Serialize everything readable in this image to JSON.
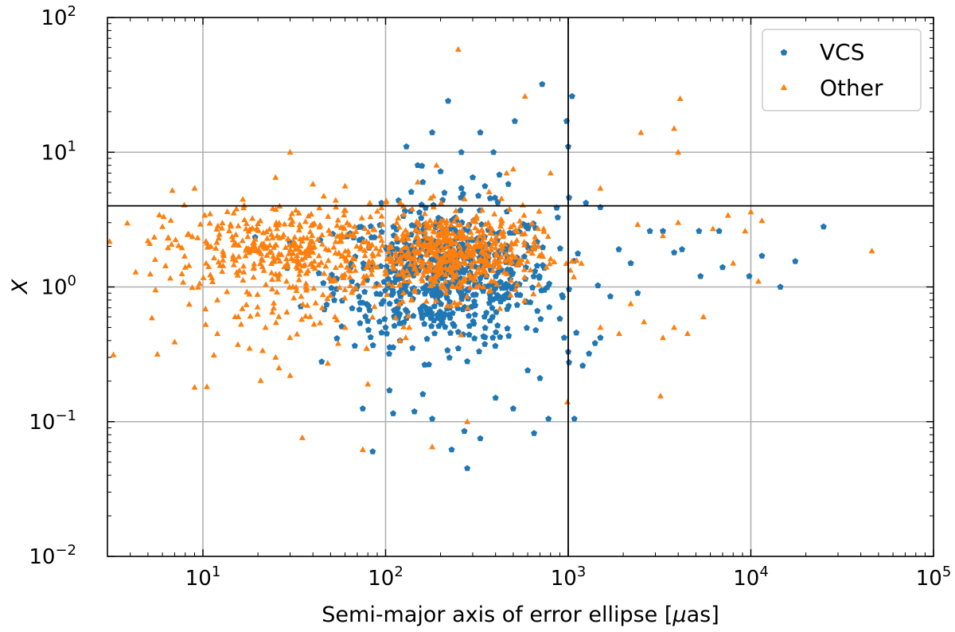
{
  "chart_data": {
    "type": "scatter",
    "title": "",
    "xlabel_main": "Semi-major axis of error ellipse [",
    "xlabel_mu": "μ",
    "xlabel_tail": "as]",
    "ylabel": "X",
    "xscale": "log",
    "yscale": "log",
    "xlim": [
      3,
      100000
    ],
    "ylim": [
      0.01,
      100
    ],
    "grid": true,
    "legend_position": "top-right",
    "x_ticks": [
      {
        "value": 10,
        "base": "10",
        "exp": "1"
      },
      {
        "value": 100,
        "base": "10",
        "exp": "2"
      },
      {
        "value": 1000,
        "base": "10",
        "exp": "3"
      },
      {
        "value": 10000,
        "base": "10",
        "exp": "4"
      },
      {
        "value": 100000,
        "base": "10",
        "exp": "5"
      }
    ],
    "y_ticks": [
      {
        "value": 0.01,
        "base": "10",
        "exp": "−2"
      },
      {
        "value": 0.1,
        "base": "10",
        "exp": "−1"
      },
      {
        "value": 1,
        "base": "10",
        "exp": "0"
      },
      {
        "value": 10,
        "base": "10",
        "exp": "1"
      },
      {
        "value": 100,
        "base": "10",
        "exp": "2"
      }
    ],
    "reference_lines": {
      "vertical_x": 1000,
      "horizontal_y": 4
    },
    "series": [
      {
        "name": "VCS",
        "color": "#1f77b4",
        "marker": "pentagon",
        "points": [
          [
            720,
            32
          ],
          [
            1050,
            26
          ],
          [
            220,
            24
          ],
          [
            510,
            17
          ],
          [
            980,
            17
          ],
          [
            180,
            14
          ],
          [
            330,
            14
          ],
          [
            130,
            11
          ],
          [
            1000,
            11
          ],
          [
            390,
            10
          ],
          [
            260,
            10
          ],
          [
            150,
            8
          ],
          [
            200,
            7.2
          ],
          [
            300,
            6.5
          ],
          [
            420,
            6.8
          ],
          [
            160,
            6.0
          ],
          [
            350,
            5.6
          ],
          [
            470,
            5.8
          ],
          [
            260,
            5.4
          ],
          [
            210,
            5.0
          ],
          [
            1010,
            4.6
          ],
          [
            1250,
            4.2
          ],
          [
            1500,
            3.9
          ],
          [
            2800,
            2.6
          ],
          [
            3300,
            2.6
          ],
          [
            4200,
            1.9
          ],
          [
            5200,
            2.6
          ],
          [
            6700,
            2.6
          ],
          [
            7000,
            1.4
          ],
          [
            11500,
            1.7
          ],
          [
            25000,
            2.8
          ],
          [
            17500,
            1.55
          ],
          [
            14500,
            1.0
          ],
          [
            5300,
            1.2
          ],
          [
            9800,
            1.2
          ],
          [
            3800,
            1.8
          ],
          [
            2200,
            1.5
          ],
          [
            1700,
            0.85
          ],
          [
            2400,
            0.9
          ],
          [
            1500,
            0.42
          ],
          [
            1300,
            0.32
          ],
          [
            1200,
            0.26
          ],
          [
            1000,
            0.33
          ],
          [
            950,
            0.42
          ],
          [
            900,
            0.58
          ],
          [
            780,
            0.105
          ],
          [
            1080,
            0.105
          ],
          [
            650,
            0.082
          ],
          [
            330,
            0.075
          ],
          [
            280,
            0.045
          ],
          [
            230,
            0.062
          ],
          [
            180,
            0.105
          ],
          [
            110,
            0.115
          ],
          [
            85,
            0.06
          ],
          [
            75,
            0.125
          ],
          [
            270,
            0.085
          ],
          [
            160,
            0.16
          ],
          [
            500,
            0.125
          ],
          [
            400,
            0.15
          ],
          [
            700,
            0.21
          ],
          [
            600,
            0.24
          ],
          [
            120,
            0.4
          ],
          [
            100,
            0.5
          ],
          [
            95,
            0.75
          ],
          [
            110,
            0.9
          ],
          [
            250,
            0.35
          ],
          [
            280,
            0.28
          ]
        ]
      },
      {
        "name": "Other",
        "color": "#ff7f0e",
        "marker": "triangle",
        "points": [
          [
            250,
            58
          ],
          [
            4100,
            25
          ],
          [
            580,
            26
          ],
          [
            3800,
            15
          ],
          [
            2500,
            14
          ],
          [
            4000,
            10
          ],
          [
            30,
            10
          ],
          [
            190,
            8
          ],
          [
            500,
            7.5
          ],
          [
            800,
            7.0
          ],
          [
            1500,
            5.4
          ],
          [
            150,
            6.0
          ],
          [
            460,
            7.0
          ],
          [
            6.8,
            5.2
          ],
          [
            9,
            5.4
          ],
          [
            25,
            6.5
          ],
          [
            40,
            5.8
          ],
          [
            60,
            5.6
          ],
          [
            7500,
            3.4
          ],
          [
            10000,
            3.6
          ],
          [
            11500,
            3.1
          ],
          [
            6200,
            2.7
          ],
          [
            4000,
            3.0
          ],
          [
            3300,
            2.4
          ],
          [
            2400,
            2.9
          ],
          [
            9300,
            2.6
          ],
          [
            46000,
            1.85
          ],
          [
            11000,
            1.1
          ],
          [
            8000,
            1.5
          ],
          [
            5500,
            0.6
          ],
          [
            4500,
            0.45
          ],
          [
            3800,
            0.5
          ],
          [
            3300,
            0.42
          ],
          [
            2600,
            0.55
          ],
          [
            2200,
            0.75
          ],
          [
            1900,
            0.45
          ],
          [
            1500,
            0.5
          ],
          [
            990,
            0.14
          ],
          [
            3200,
            0.155
          ],
          [
            280,
            0.1
          ],
          [
            180,
            0.065
          ],
          [
            75,
            0.062
          ],
          [
            35,
            0.076
          ],
          [
            9,
            0.18
          ],
          [
            7,
            0.39
          ],
          [
            12,
            0.45
          ],
          [
            18,
            0.35
          ],
          [
            25,
            0.3
          ],
          [
            30,
            0.22
          ],
          [
            80,
            0.19
          ],
          [
            55,
            0.38
          ],
          [
            5.5,
            0.95
          ],
          [
            8,
            1.4
          ],
          [
            5,
            2.2
          ],
          [
            6,
            2.8
          ],
          [
            12,
            0.8
          ],
          [
            15,
            0.6
          ],
          [
            22,
            0.5
          ],
          [
            45,
            0.7
          ],
          [
            60,
            0.5
          ],
          [
            120,
            0.4
          ]
        ]
      }
    ],
    "clusters": [
      {
        "series": "VCS",
        "n": 650,
        "log_x_mean": 2.33,
        "log_x_sd": 0.3,
        "log_y_mean": 0.08,
        "log_y_sd": 0.25
      },
      {
        "series": "Other",
        "n": 360,
        "log_x_mean": 1.45,
        "log_x_sd": 0.33,
        "log_y_mean": 0.3,
        "log_y_sd": 0.16
      },
      {
        "series": "Other",
        "n": 90,
        "log_x_mean": 1.5,
        "log_x_sd": 0.35,
        "log_y_mean": -0.12,
        "log_y_sd": 0.22
      },
      {
        "series": "Other",
        "n": 540,
        "log_x_mean": 2.36,
        "log_x_sd": 0.24,
        "log_y_mean": 0.24,
        "log_y_sd": 0.16
      }
    ]
  }
}
